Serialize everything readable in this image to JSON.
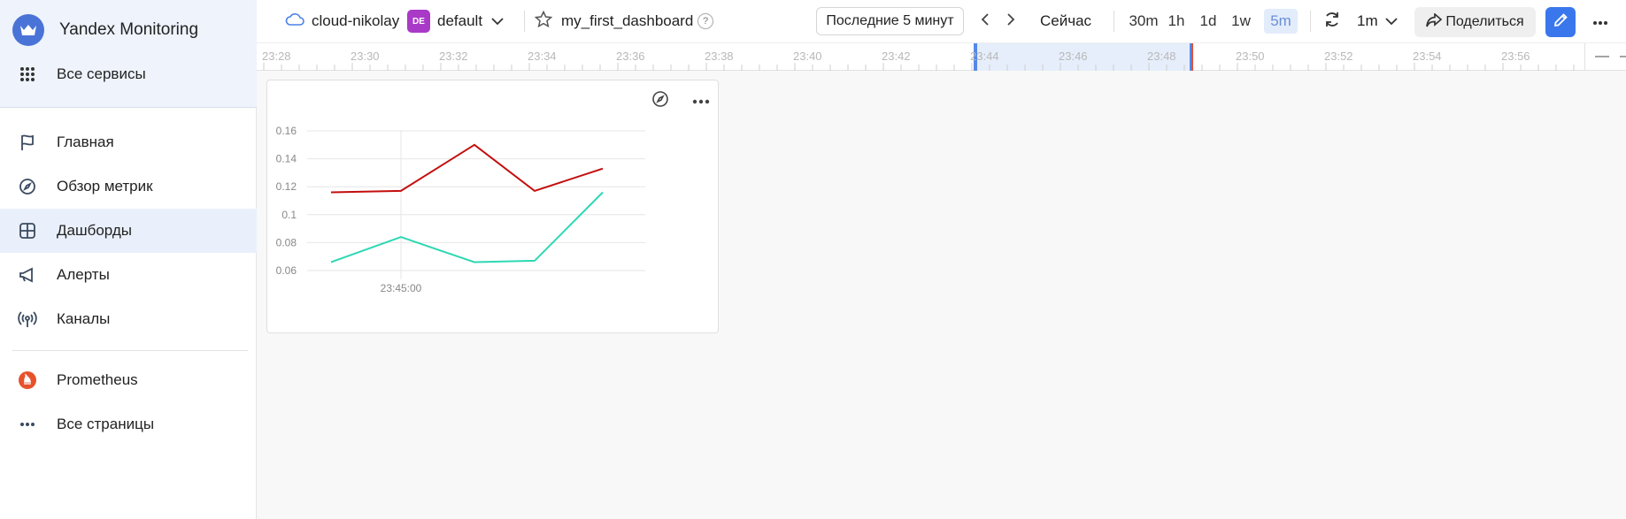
{
  "app": {
    "title": "Yandex Monitoring"
  },
  "sidebar": {
    "services": "Все сервисы",
    "items": [
      {
        "label": "Главная",
        "icon": "flag-icon"
      },
      {
        "label": "Обзор метрик",
        "icon": "compass-icon"
      },
      {
        "label": "Дашборды",
        "icon": "dashboard-icon",
        "active": true
      },
      {
        "label": "Алерты",
        "icon": "megaphone-icon"
      },
      {
        "label": "Каналы",
        "icon": "antenna-icon"
      }
    ],
    "extra": [
      {
        "label": "Prometheus",
        "icon": "prometheus-icon"
      },
      {
        "label": "Все страницы",
        "icon": "more-dots-icon"
      }
    ]
  },
  "header": {
    "cloud": "cloud-nikolay",
    "folder_badge": "DE",
    "folder": "default",
    "dashboard": "my_first_dashboard",
    "help": "?",
    "period": "Последние 5 минут",
    "now": "Сейчас",
    "ranges": [
      "30m",
      "1h",
      "1d",
      "1w",
      "5m"
    ],
    "selected_range": "5m",
    "refresh_interval": "1m",
    "share": "Поделиться"
  },
  "timeline": {
    "labels": [
      "23:28",
      "23:30",
      "23:32",
      "23:34",
      "23:36",
      "23:38",
      "23:40",
      "23:42",
      "23:44",
      "23:46",
      "23:48",
      "23:50",
      "23:52",
      "23:54",
      "23:56"
    ]
  },
  "colors": {
    "accent": "#3b77ec",
    "series_red": "#c40d0d",
    "series_teal": "#2ed8b3"
  },
  "chart_data": {
    "type": "line",
    "x": [
      "23:44:00",
      "23:45:00",
      "23:46:00",
      "23:47:00",
      "23:48:00"
    ],
    "x_tick_label": "23:45:00",
    "series": [
      {
        "values": [
          0.116,
          0.117,
          0.15,
          0.117,
          0.133
        ],
        "color": "#c40d0d"
      },
      {
        "values": [
          0.066,
          0.084,
          0.066,
          0.067,
          0.116
        ],
        "color": "#2ed8b3"
      }
    ],
    "y_ticks": [
      "0.16",
      "0.14",
      "0.12",
      "0.1",
      "0.08",
      "0.06"
    ],
    "ylim": [
      0.06,
      0.16
    ],
    "grid": true
  }
}
